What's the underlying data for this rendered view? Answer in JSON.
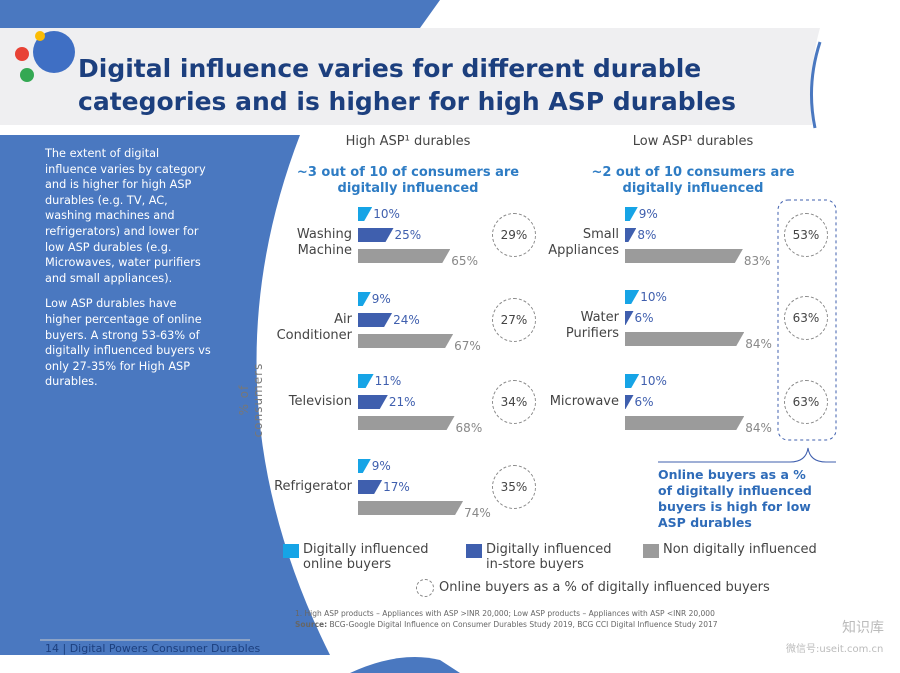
{
  "header": {
    "title": "Digital influence varies for different durable categories and is higher for high ASP durables"
  },
  "sidebar": {
    "paragraphs": [
      "The extent of digital influence varies by category and is higher for high ASP durables (e.g. TV, AC, washing machines and refrigerators) and lower for low ASP durables (e.g. Microwaves, water purifiers and small appliances).",
      "Low ASP durables have higher percentage of online buyers. A strong 53-63% of digitally influenced buyers vs only 27-35% for High ASP durables."
    ]
  },
  "axis_label": "% of consumers",
  "legend": [
    {
      "name": "Digitally influenced online buyers",
      "color": "#16a4e6"
    },
    {
      "name": "Digitally influenced in-store buyers",
      "color": "#3f5fae"
    },
    {
      "name": "Non digitally influenced",
      "color": "#9b9b9b"
    }
  ],
  "circle_legend": "Online buyers as a % of digitally influenced buyers",
  "chart_data": [
    {
      "type": "bar",
      "title": "High ASP¹ durables",
      "subtitle": "~3 out of 10 of consumers are digitally influenced",
      "categories": [
        "Washing Machine",
        "Air Conditioner",
        "Television",
        "Refrigerator"
      ],
      "series": [
        {
          "values": [
            10,
            9,
            11,
            9
          ],
          "value_labels": [
            "10%",
            "9%",
            "11%",
            "9%"
          ]
        },
        {
          "values": [
            25,
            24,
            21,
            17
          ],
          "value_labels": [
            "25%",
            "24%",
            "21%",
            "17%"
          ]
        },
        {
          "values": [
            65,
            67,
            68,
            74
          ],
          "value_labels": [
            "65%",
            "67%",
            "68%",
            "74%"
          ]
        }
      ],
      "online_share": {
        "values": [
          29,
          27,
          34,
          35
        ],
        "value_labels": [
          "29%",
          "27%",
          "34%",
          "35%"
        ]
      }
    },
    {
      "type": "bar",
      "title": "Low ASP¹ durables",
      "subtitle": "~2 out of 10 consumers are digitally influenced",
      "categories": [
        "Small Appliances",
        "Water Purifiers",
        "Microwave"
      ],
      "series": [
        {
          "values": [
            9,
            10,
            10
          ],
          "value_labels": [
            "9%",
            "10%",
            "10%"
          ]
        },
        {
          "values": [
            8,
            6,
            6
          ],
          "value_labels": [
            "8%",
            "6%",
            "6%"
          ]
        },
        {
          "values": [
            83,
            84,
            84
          ],
          "value_labels": [
            "83%",
            "84%",
            "84%"
          ]
        }
      ],
      "online_share": {
        "values": [
          53,
          63,
          63
        ],
        "value_labels": [
          "53%",
          "63%",
          "63%"
        ]
      },
      "note": "Online buyers as a % of digitally influenced buyers is high for low ASP durables"
    }
  ],
  "footnote": "1. High ASP products – Appliances with ASP >INR 20,000; Low ASP products – Appliances with ASP <INR 20,000",
  "source_label": "Source:",
  "source": "BCG-Google Digital Influence on Consumer Durables Study 2019, BCG CCI Digital Influence Study 2017",
  "footer": {
    "page": "14",
    "text": "Digital Powers Consumer Durables"
  },
  "watermark": {
    "name": "知识库",
    "id": "微信号:useit.com.cn"
  }
}
